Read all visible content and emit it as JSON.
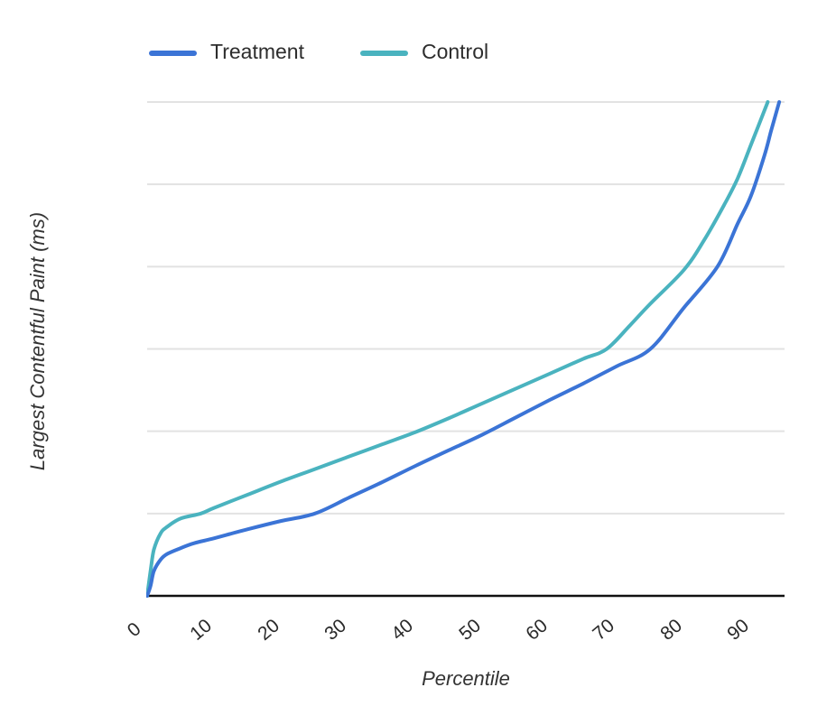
{
  "colors": {
    "treatment_line": "#3b74d6",
    "control_line": "#4ab3bf",
    "gridline": "#e2e2e2",
    "axis_line": "#111111",
    "text": "#2d2d2d"
  },
  "chart_data": {
    "type": "line",
    "title": "",
    "xlabel": "Percentile",
    "ylabel": "Largest Contentful Paint (ms)",
    "x_ticks": [
      0,
      10,
      20,
      30,
      40,
      50,
      60,
      70,
      80,
      90
    ],
    "xlim": [
      0,
      95
    ],
    "ylim": [
      0,
      6000
    ],
    "y_tick_labels": "none (y axis unlabeled)",
    "y_gridlines": 6,
    "y_gridline_spacing_ms_estimated": 1000,
    "grid": "horizontal only",
    "legend_position": "top-left",
    "series": [
      {
        "name": "Treatment",
        "color": "#3b74d6",
        "x": [
          0,
          0.5,
          1,
          2,
          3,
          5,
          7,
          10,
          15,
          20,
          25,
          30,
          35,
          40,
          45,
          50,
          55,
          60,
          65,
          70,
          75,
          80,
          85,
          88,
          90,
          92,
          93,
          94.2
        ],
        "y": [
          0,
          120,
          300,
          440,
          510,
          580,
          640,
          700,
          810,
          910,
          1000,
          1190,
          1380,
          1580,
          1770,
          1960,
          2170,
          2380,
          2580,
          2790,
          3000,
          3500,
          4000,
          4520,
          4860,
          5350,
          5650,
          6000
        ]
      },
      {
        "name": "Control",
        "color": "#4ab3bf",
        "x": [
          0,
          0.5,
          1,
          2,
          3,
          5,
          8,
          10,
          15,
          20,
          25,
          30,
          35,
          40,
          45,
          50,
          55,
          60,
          65,
          68.5,
          72,
          75,
          80,
          83,
          86,
          88,
          90,
          92.5
        ],
        "y": [
          0,
          300,
          560,
          760,
          840,
          940,
          1000,
          1070,
          1230,
          1390,
          1540,
          1690,
          1840,
          1990,
          2160,
          2340,
          2520,
          2700,
          2880,
          3000,
          3290,
          3550,
          3960,
          4320,
          4750,
          5070,
          5480,
          6000
        ]
      }
    ]
  }
}
